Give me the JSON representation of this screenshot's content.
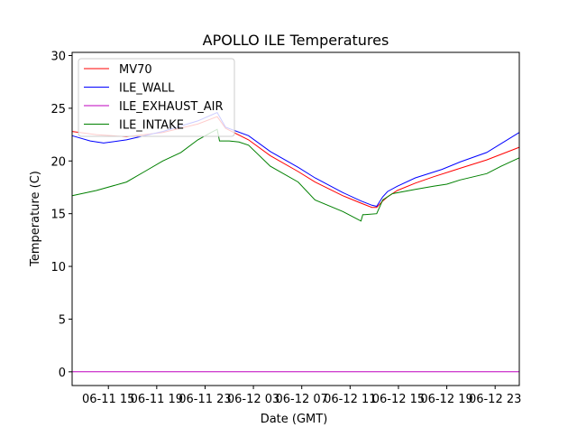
{
  "chart_data": {
    "type": "line",
    "title": "APOLLO ILE Temperatures",
    "xlabel": "Date (GMT)",
    "ylabel": "Temperature (C)",
    "x_units": "hours since 06-11 00:00",
    "xlim": [
      12.0,
      49.0
    ],
    "ylim": [
      -1.3,
      30.3
    ],
    "grid": false,
    "legend_position": "top-left",
    "x_ticks": [
      {
        "value": 15,
        "label": "06-11 15"
      },
      {
        "value": 19,
        "label": "06-11 19"
      },
      {
        "value": 23,
        "label": "06-11 23"
      },
      {
        "value": 27,
        "label": "06-12 03"
      },
      {
        "value": 31,
        "label": "06-12 07"
      },
      {
        "value": 35,
        "label": "06-12 11"
      },
      {
        "value": 39,
        "label": "06-12 15"
      },
      {
        "value": 43,
        "label": "06-12 19"
      },
      {
        "value": 47,
        "label": "06-12 23"
      }
    ],
    "y_ticks": [
      {
        "value": 0,
        "label": "0"
      },
      {
        "value": 5,
        "label": "5"
      },
      {
        "value": 10,
        "label": "10"
      },
      {
        "value": 15,
        "label": "15"
      },
      {
        "value": 20,
        "label": "20"
      },
      {
        "value": 25,
        "label": "25"
      },
      {
        "value": 30,
        "label": "30"
      }
    ],
    "series": [
      {
        "name": "MV70",
        "color": "#ff0000",
        "x": [
          12.0,
          14.0,
          16.5,
          19.5,
          22.4,
          24.0,
          24.7,
          26.6,
          28.4,
          30.7,
          32.1,
          34.4,
          35.9,
          36.8,
          37.2,
          37.7,
          38.1,
          38.9,
          40.4,
          41.9,
          44.1,
          46.3,
          49.0
        ],
        "y": [
          22.8,
          22.5,
          22.3,
          22.7,
          23.5,
          24.2,
          23.1,
          22.0,
          20.5,
          19.0,
          18.0,
          16.7,
          16.0,
          15.6,
          15.6,
          16.2,
          16.6,
          17.2,
          17.9,
          18.5,
          19.3,
          20.1,
          21.3
        ]
      },
      {
        "name": "ILE_WALL",
        "color": "#0000ff",
        "x": [
          12.0,
          13.5,
          14.6,
          16.5,
          19.5,
          22.4,
          24.0,
          24.7,
          26.6,
          28.4,
          30.7,
          32.1,
          34.4,
          35.9,
          36.8,
          37.2,
          37.7,
          38.1,
          38.9,
          40.4,
          42.6,
          44.1,
          46.3,
          49.0
        ],
        "y": [
          22.4,
          21.9,
          21.7,
          22.0,
          22.8,
          23.8,
          24.6,
          23.2,
          22.4,
          20.9,
          19.4,
          18.4,
          17.0,
          16.2,
          15.8,
          15.7,
          16.6,
          17.1,
          17.6,
          18.4,
          19.2,
          19.9,
          20.8,
          22.7
        ]
      },
      {
        "name": "ILE_EXHAUST_AIR",
        "color": "#bf00bf",
        "x": [
          12.0,
          49.0
        ],
        "y": [
          0.0,
          0.0
        ]
      },
      {
        "name": "ILE_INTAKE",
        "color": "#008000",
        "x": [
          12.0,
          14.0,
          16.5,
          18.0,
          19.5,
          21.0,
          22.4,
          23.5,
          24.0,
          24.2,
          25.0,
          25.8,
          26.6,
          28.4,
          30.7,
          32.1,
          34.4,
          35.9,
          36.05,
          36.2,
          37.2,
          37.7,
          38.5,
          40.4,
          41.9,
          43.0,
          44.1,
          46.3,
          47.5,
          49.0
        ],
        "y": [
          16.7,
          17.2,
          18.0,
          19.0,
          20.0,
          20.8,
          22.0,
          22.7,
          23.0,
          21.9,
          21.9,
          21.8,
          21.5,
          19.5,
          18.0,
          16.3,
          15.2,
          14.3,
          14.9,
          14.9,
          15.0,
          16.3,
          16.9,
          17.3,
          17.6,
          17.8,
          18.2,
          18.8,
          19.5,
          20.3
        ]
      }
    ]
  }
}
